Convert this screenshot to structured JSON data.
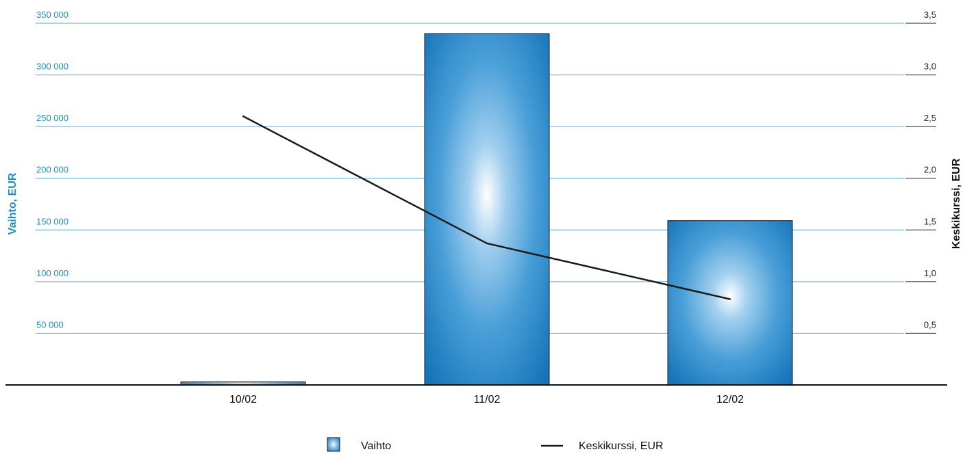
{
  "chart_data": {
    "type": "bar",
    "categories": [
      "10/02",
      "11/02",
      "12/02"
    ],
    "series": [
      {
        "name": "Vaihto",
        "type": "bar",
        "axis": "left",
        "values": [
          3000,
          340000,
          159000
        ]
      },
      {
        "name": "Keskikurssi, EUR",
        "type": "line",
        "axis": "right",
        "values": [
          2.6,
          1.37,
          0.83
        ]
      }
    ],
    "ylabel": "Vaihto, EUR",
    "y2label": "Keskikurssi, EUR",
    "ylim": [
      0,
      350000
    ],
    "y2lim": [
      0,
      3.5
    ],
    "yticks": [
      "350 000",
      "300 000",
      "250 000",
      "200 000",
      "150 000",
      "100 000",
      "50 000"
    ],
    "y2ticks": [
      "3,5",
      "3,0",
      "2,5",
      "2,0",
      "1,5",
      "1,0",
      "0,5"
    ],
    "grid": true,
    "legend_position": "bottom",
    "colors": {
      "bar": "#1b86c6",
      "bar_highlight": "#ffffff",
      "line": "#1a1a1a",
      "grid": "#5aa6d6",
      "left_axis": "#1a8fc9"
    }
  }
}
